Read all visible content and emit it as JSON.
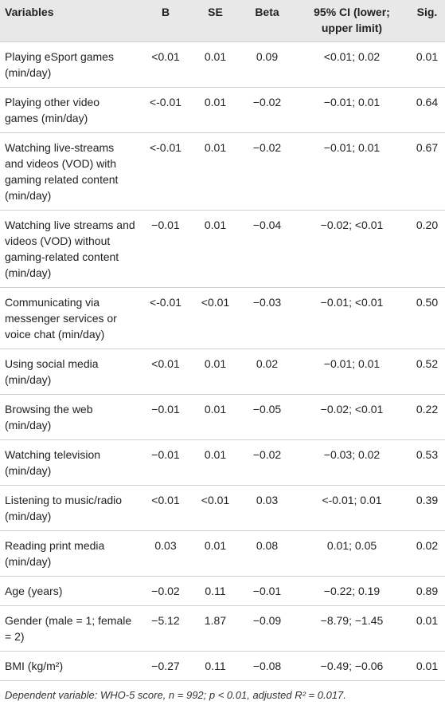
{
  "table": {
    "headers": [
      "Variables",
      "B",
      "SE",
      "Beta",
      "95% CI (lower; upper limit)",
      "Sig."
    ],
    "rows": [
      [
        "Playing eSport games (min/day)",
        "<0.01",
        "0.01",
        "0.09",
        "<0.01; 0.02",
        "0.01"
      ],
      [
        "Playing other video games (min/day)",
        "<-0.01",
        "0.01",
        "−0.02",
        "−0.01; 0.01",
        "0.64"
      ],
      [
        "Watching live-streams and videos (VOD) with gaming related content (min/day)",
        "<-0.01",
        "0.01",
        "−0.02",
        "−0.01; 0.01",
        "0.67"
      ],
      [
        "Watching live streams and videos (VOD) without gaming-related content (min/day)",
        "−0.01",
        "0.01",
        "−0.04",
        "−0.02; <0.01",
        "0.20"
      ],
      [
        "Communicating via messenger services or voice chat (min/day)",
        "<-0.01",
        "<0.01",
        "−0.03",
        "−0.01; <0.01",
        "0.50"
      ],
      [
        "Using social media (min/day)",
        "<0.01",
        "0.01",
        "0.02",
        "−0.01; 0.01",
        "0.52"
      ],
      [
        "Browsing the web (min/day)",
        "−0.01",
        "0.01",
        "−0.05",
        "−0.02; <0.01",
        "0.22"
      ],
      [
        "Watching television (min/day)",
        "−0.01",
        "0.01",
        "−0.02",
        "−0.03; 0.02",
        "0.53"
      ],
      [
        "Listening to music/radio (min/day)",
        "<0.01",
        "<0.01",
        "0.03",
        "<-0.01; 0.01",
        "0.39"
      ],
      [
        "Reading print media (min/day)",
        "0.03",
        "0.01",
        "0.08",
        "0.01; 0.05",
        "0.02"
      ],
      [
        "Age (years)",
        "−0.02",
        "0.11",
        "−0.01",
        "−0.22; 0.19",
        "0.89"
      ],
      [
        "Gender (male = 1; female = 2)",
        "−5.12",
        "1.87",
        "−0.09",
        "−8.79; −1.45",
        "0.01"
      ],
      [
        "BMI (kg/m²)",
        "−0.27",
        "0.11",
        "−0.08",
        "−0.49; −0.06",
        "0.01"
      ]
    ],
    "footnote": "Dependent variable: WHO-5 score, n = 992; p < 0.01, adjusted R² = 0.017."
  }
}
